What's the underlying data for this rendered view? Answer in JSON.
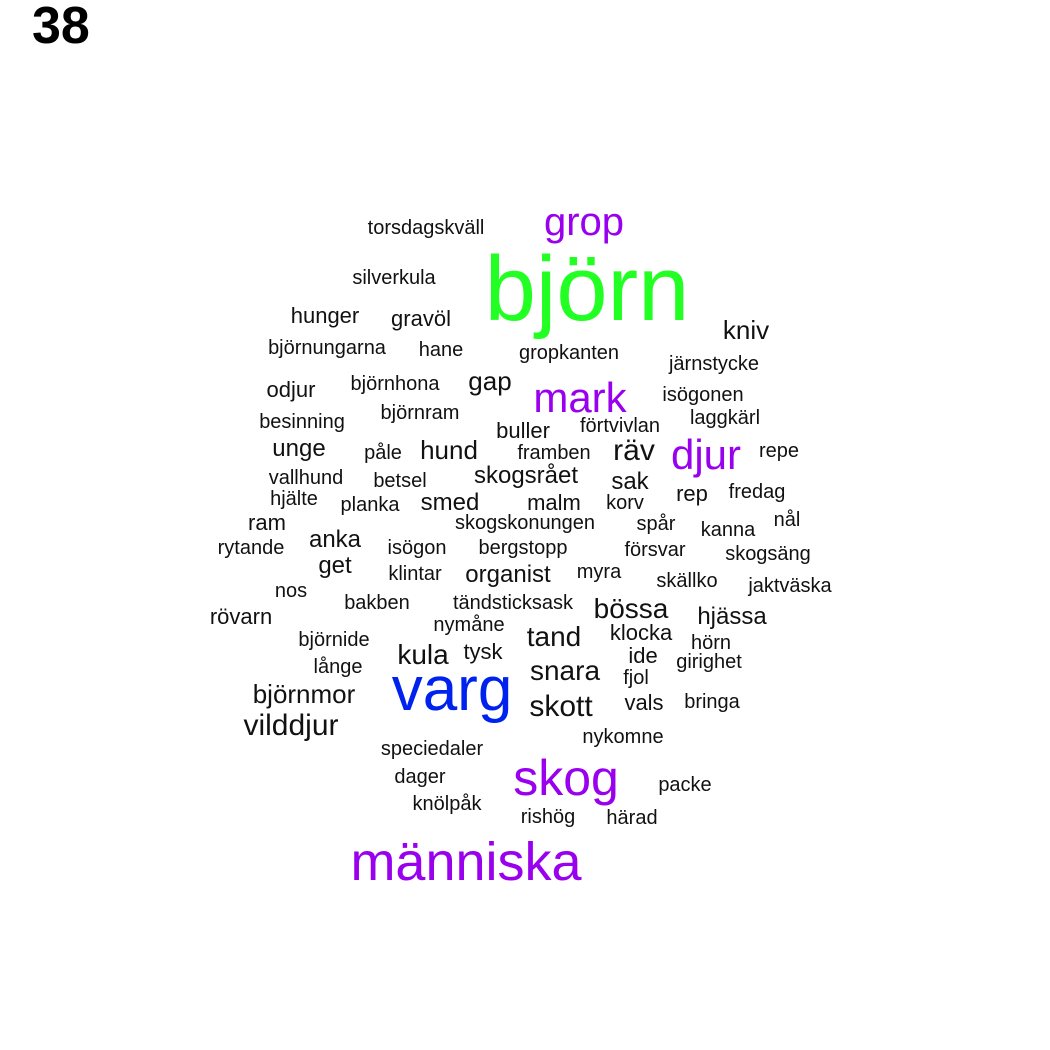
{
  "page_number": "38",
  "colors": {
    "highlight": "#22ff22",
    "accent": "#9900ee",
    "secondary": "#0022ee",
    "text": "#111111"
  },
  "words": [
    {
      "text": "björn",
      "weight": 5,
      "color": "#22ff22"
    },
    {
      "text": "varg",
      "weight": 4,
      "color": "#0022ee"
    },
    {
      "text": "människa",
      "weight": 3,
      "color": "#9900ee"
    },
    {
      "text": "skog",
      "weight": 3,
      "color": "#9900ee"
    },
    {
      "text": "mark",
      "weight": 2,
      "color": "#9900ee"
    },
    {
      "text": "djur",
      "weight": 2,
      "color": "#9900ee"
    },
    {
      "text": "grop",
      "weight": 2,
      "color": "#9900ee"
    },
    {
      "text": "vilddjur",
      "weight": 1,
      "color": "#111111"
    },
    {
      "text": "skott",
      "weight": 1,
      "color": "#111111"
    },
    {
      "text": "snara",
      "weight": 1,
      "color": "#111111"
    },
    {
      "text": "tand",
      "weight": 1,
      "color": "#111111"
    },
    {
      "text": "bössa",
      "weight": 1,
      "color": "#111111"
    },
    {
      "text": "räv",
      "weight": 1,
      "color": "#111111"
    },
    {
      "text": "kula",
      "weight": 1,
      "color": "#111111"
    },
    {
      "text": "björnmor",
      "weight": 1,
      "color": "#111111"
    },
    {
      "text": "kniv",
      "weight": 1,
      "color": "#111111"
    },
    {
      "text": "gap",
      "weight": 1,
      "color": "#111111"
    },
    {
      "text": "hund",
      "weight": 1,
      "color": "#111111"
    },
    {
      "text": "organist",
      "weight": 1,
      "color": "#111111"
    },
    {
      "text": "sak",
      "weight": 1,
      "color": "#111111"
    },
    {
      "text": "hunger",
      "weight": 1,
      "color": "#111111"
    },
    {
      "text": "hjässa",
      "weight": 1,
      "color": "#111111"
    },
    {
      "text": "rövarn",
      "weight": 1,
      "color": "#111111"
    },
    {
      "text": "unge",
      "weight": 1,
      "color": "#111111"
    },
    {
      "text": "skogsrået",
      "weight": 1,
      "color": "#111111"
    },
    {
      "text": "smed",
      "weight": 1,
      "color": "#111111"
    },
    {
      "text": "anka",
      "weight": 1,
      "color": "#111111"
    },
    {
      "text": "get",
      "weight": 1,
      "color": "#111111"
    },
    {
      "text": "ram",
      "weight": 1,
      "color": "#111111"
    },
    {
      "text": "rep",
      "weight": 1,
      "color": "#111111"
    },
    {
      "text": "vals",
      "weight": 1,
      "color": "#111111"
    },
    {
      "text": "buller",
      "weight": 1,
      "color": "#111111"
    },
    {
      "text": "malm",
      "weight": 1,
      "color": "#111111"
    },
    {
      "text": "gravöl",
      "weight": 1,
      "color": "#111111"
    },
    {
      "text": "odjur",
      "weight": 1,
      "color": "#111111"
    },
    {
      "text": "tysk",
      "weight": 1,
      "color": "#111111"
    },
    {
      "text": "klocka",
      "weight": 1,
      "color": "#111111"
    },
    {
      "text": "ide",
      "weight": 1,
      "color": "#111111"
    },
    {
      "text": "torsdagskväll",
      "weight": 0,
      "color": "#111111"
    },
    {
      "text": "silverkula",
      "weight": 0,
      "color": "#111111"
    },
    {
      "text": "björnungarna",
      "weight": 0,
      "color": "#111111"
    },
    {
      "text": "hane",
      "weight": 0,
      "color": "#111111"
    },
    {
      "text": "gropkanten",
      "weight": 0,
      "color": "#111111"
    },
    {
      "text": "järnstycke",
      "weight": 0,
      "color": "#111111"
    },
    {
      "text": "björnhona",
      "weight": 0,
      "color": "#111111"
    },
    {
      "text": "isögonen",
      "weight": 0,
      "color": "#111111"
    },
    {
      "text": "besinning",
      "weight": 0,
      "color": "#111111"
    },
    {
      "text": "björnram",
      "weight": 0,
      "color": "#111111"
    },
    {
      "text": "förtvivlan",
      "weight": 0,
      "color": "#111111"
    },
    {
      "text": "laggkärl",
      "weight": 0,
      "color": "#111111"
    },
    {
      "text": "påle",
      "weight": 0,
      "color": "#111111"
    },
    {
      "text": "framben",
      "weight": 0,
      "color": "#111111"
    },
    {
      "text": "repe",
      "weight": 0,
      "color": "#111111"
    },
    {
      "text": "vallhund",
      "weight": 0,
      "color": "#111111"
    },
    {
      "text": "betsel",
      "weight": 0,
      "color": "#111111"
    },
    {
      "text": "fredag",
      "weight": 0,
      "color": "#111111"
    },
    {
      "text": "hjälte",
      "weight": 0,
      "color": "#111111"
    },
    {
      "text": "planka",
      "weight": 0,
      "color": "#111111"
    },
    {
      "text": "korv",
      "weight": 0,
      "color": "#111111"
    },
    {
      "text": "nål",
      "weight": 0,
      "color": "#111111"
    },
    {
      "text": "skogskonungen",
      "weight": 0,
      "color": "#111111"
    },
    {
      "text": "spår",
      "weight": 0,
      "color": "#111111"
    },
    {
      "text": "kanna",
      "weight": 0,
      "color": "#111111"
    },
    {
      "text": "rytande",
      "weight": 0,
      "color": "#111111"
    },
    {
      "text": "isögon",
      "weight": 0,
      "color": "#111111"
    },
    {
      "text": "bergstopp",
      "weight": 0,
      "color": "#111111"
    },
    {
      "text": "försvar",
      "weight": 0,
      "color": "#111111"
    },
    {
      "text": "skogsäng",
      "weight": 0,
      "color": "#111111"
    },
    {
      "text": "klintar",
      "weight": 0,
      "color": "#111111"
    },
    {
      "text": "myra",
      "weight": 0,
      "color": "#111111"
    },
    {
      "text": "skällko",
      "weight": 0,
      "color": "#111111"
    },
    {
      "text": "jaktväska",
      "weight": 0,
      "color": "#111111"
    },
    {
      "text": "nos",
      "weight": 0,
      "color": "#111111"
    },
    {
      "text": "bakben",
      "weight": 0,
      "color": "#111111"
    },
    {
      "text": "tändsticksask",
      "weight": 0,
      "color": "#111111"
    },
    {
      "text": "nymåne",
      "weight": 0,
      "color": "#111111"
    },
    {
      "text": "björnide",
      "weight": 0,
      "color": "#111111"
    },
    {
      "text": "hörn",
      "weight": 0,
      "color": "#111111"
    },
    {
      "text": "långe",
      "weight": 0,
      "color": "#111111"
    },
    {
      "text": "girighet",
      "weight": 0,
      "color": "#111111"
    },
    {
      "text": "fjol",
      "weight": 0,
      "color": "#111111"
    },
    {
      "text": "bringa",
      "weight": 0,
      "color": "#111111"
    },
    {
      "text": "nykomne",
      "weight": 0,
      "color": "#111111"
    },
    {
      "text": "speciedaler",
      "weight": 0,
      "color": "#111111"
    },
    {
      "text": "dager",
      "weight": 0,
      "color": "#111111"
    },
    {
      "text": "packe",
      "weight": 0,
      "color": "#111111"
    },
    {
      "text": "knölpåk",
      "weight": 0,
      "color": "#111111"
    },
    {
      "text": "rishög",
      "weight": 0,
      "color": "#111111"
    },
    {
      "text": "härad",
      "weight": 0,
      "color": "#111111"
    }
  ]
}
